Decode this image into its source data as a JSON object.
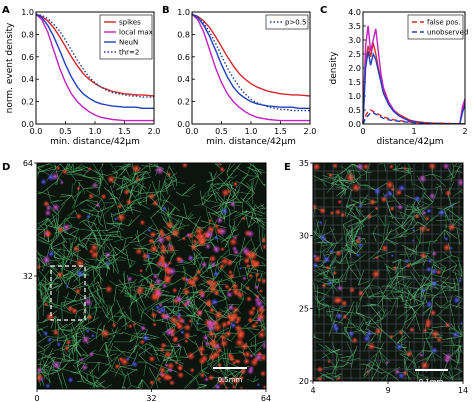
{
  "panels": {
    "A": {
      "letter": "A",
      "xlabel": "min. distance/42μm",
      "ylabel": "norm. event density",
      "xticks": [
        "0.0",
        "0.5",
        "1.0",
        "1.5",
        "2.0"
      ],
      "yticks": [
        "0.0",
        "0.2",
        "0.4",
        "0.6",
        "0.8",
        "1.0"
      ],
      "legend": [
        "spikes",
        "local max.",
        "NeuN",
        "thr=2"
      ]
    },
    "B": {
      "letter": "B",
      "xlabel": "min. distance/42μm",
      "xticks": [
        "0.0",
        "0.5",
        "1.0",
        "1.5",
        "2.0"
      ],
      "yticks": [
        "0.0",
        "0.2",
        "0.4",
        "0.6",
        "0.8",
        "1.0"
      ],
      "legend": [
        "p>0.5"
      ]
    },
    "C": {
      "letter": "C",
      "xlabel": "distance/42μm",
      "ylabel": "density",
      "xticks": [
        "0",
        "1",
        "2"
      ],
      "yticks": [
        "0.0",
        "0.5",
        "1.0",
        "1.5",
        "2.0",
        "2.5",
        "3.0",
        "3.5",
        "4.0"
      ],
      "legend": [
        "false pos.",
        "unobserved"
      ]
    },
    "D": {
      "letter": "D",
      "xticks": [
        "0",
        "32",
        "64"
      ],
      "yticks": [
        "32",
        "64"
      ],
      "scalebar": "0.5mm"
    },
    "E": {
      "letter": "E",
      "xticks": [
        "4",
        "9",
        "14"
      ],
      "yticks": [
        "20",
        "25",
        "30",
        "35"
      ],
      "scalebar": "0.1mm"
    }
  },
  "chart_data": [
    {
      "type": "line",
      "panel": "A",
      "xlim": [
        0,
        2
      ],
      "ylim": [
        0,
        1
      ],
      "x": [
        0,
        0.1,
        0.2,
        0.3,
        0.4,
        0.5,
        0.6,
        0.7,
        0.8,
        0.9,
        1.0,
        1.1,
        1.2,
        1.3,
        1.4,
        1.5,
        1.6,
        1.7,
        1.8,
        1.9,
        2.0
      ],
      "series": [
        {
          "name": "spikes",
          "color": "#d62728",
          "style": "solid",
          "values": [
            0.98,
            0.96,
            0.92,
            0.86,
            0.78,
            0.69,
            0.6,
            0.52,
            0.45,
            0.4,
            0.36,
            0.33,
            0.31,
            0.29,
            0.28,
            0.27,
            0.265,
            0.26,
            0.26,
            0.255,
            0.25
          ]
        },
        {
          "name": "local max.",
          "color": "#c020c0",
          "style": "solid",
          "values": [
            0.98,
            0.93,
            0.82,
            0.66,
            0.5,
            0.37,
            0.27,
            0.2,
            0.15,
            0.11,
            0.08,
            0.06,
            0.05,
            0.04,
            0.035,
            0.03,
            0.03,
            0.03,
            0.03,
            0.03,
            0.03
          ]
        },
        {
          "name": "NeuN",
          "color": "#1f3fbf",
          "style": "solid",
          "values": [
            0.98,
            0.95,
            0.88,
            0.78,
            0.66,
            0.53,
            0.42,
            0.33,
            0.27,
            0.23,
            0.2,
            0.18,
            0.17,
            0.16,
            0.155,
            0.15,
            0.15,
            0.15,
            0.14,
            0.14,
            0.14
          ]
        },
        {
          "name": "thr=2",
          "color": "#1f3f8f",
          "style": "dotted",
          "values": [
            0.98,
            0.97,
            0.94,
            0.89,
            0.83,
            0.75,
            0.66,
            0.57,
            0.49,
            0.42,
            0.37,
            0.33,
            0.3,
            0.28,
            0.27,
            0.26,
            0.25,
            0.25,
            0.24,
            0.24,
            0.24
          ]
        }
      ]
    },
    {
      "type": "line",
      "panel": "B",
      "xlim": [
        0,
        2
      ],
      "ylim": [
        0,
        1
      ],
      "x": [
        0,
        0.1,
        0.2,
        0.3,
        0.4,
        0.5,
        0.6,
        0.7,
        0.8,
        0.9,
        1.0,
        1.1,
        1.2,
        1.3,
        1.4,
        1.5,
        1.6,
        1.7,
        1.8,
        1.9,
        2.0
      ],
      "series": [
        {
          "name": "spikes",
          "color": "#d62728",
          "style": "solid",
          "values": [
            0.98,
            0.96,
            0.92,
            0.86,
            0.78,
            0.69,
            0.6,
            0.52,
            0.45,
            0.4,
            0.36,
            0.33,
            0.31,
            0.29,
            0.28,
            0.27,
            0.265,
            0.26,
            0.26,
            0.255,
            0.25
          ]
        },
        {
          "name": "local max.",
          "color": "#c020c0",
          "style": "solid",
          "values": [
            0.98,
            0.93,
            0.82,
            0.66,
            0.5,
            0.37,
            0.27,
            0.2,
            0.15,
            0.11,
            0.08,
            0.06,
            0.05,
            0.04,
            0.035,
            0.03,
            0.03,
            0.03,
            0.03,
            0.03,
            0.03
          ]
        },
        {
          "name": "NeuN",
          "color": "#1f3fbf",
          "style": "solid",
          "values": [
            0.98,
            0.95,
            0.88,
            0.78,
            0.66,
            0.53,
            0.42,
            0.33,
            0.27,
            0.23,
            0.2,
            0.18,
            0.17,
            0.16,
            0.155,
            0.15,
            0.15,
            0.15,
            0.14,
            0.14,
            0.14
          ]
        },
        {
          "name": "p>0.5",
          "color": "#1f3f8f",
          "style": "dotted",
          "values": [
            0.98,
            0.96,
            0.9,
            0.82,
            0.72,
            0.61,
            0.5,
            0.41,
            0.33,
            0.27,
            0.22,
            0.19,
            0.17,
            0.15,
            0.14,
            0.13,
            0.13,
            0.12,
            0.12,
            0.12,
            0.12
          ]
        }
      ]
    },
    {
      "type": "line",
      "panel": "C",
      "xlim": [
        0,
        2
      ],
      "ylim": [
        0,
        4
      ],
      "x": [
        0,
        0.05,
        0.1,
        0.15,
        0.2,
        0.25,
        0.3,
        0.35,
        0.4,
        0.5,
        0.6,
        0.7,
        0.8,
        0.9,
        1.0,
        1.2,
        1.4,
        1.6,
        1.8,
        1.9,
        1.95,
        2.0
      ],
      "series": [
        {
          "name": "spikes",
          "color": "#d62728",
          "style": "solid",
          "values": [
            0.0,
            2.2,
            2.8,
            2.4,
            2.9,
            2.5,
            2.0,
            1.6,
            1.2,
            0.8,
            0.5,
            0.35,
            0.25,
            0.15,
            0.1,
            0.05,
            0.03,
            0.02,
            0.01,
            0.01,
            0.5,
            0.8
          ]
        },
        {
          "name": "local max.",
          "color": "#c020c0",
          "style": "solid",
          "values": [
            0.0,
            2.8,
            3.5,
            2.6,
            3.0,
            3.4,
            2.6,
            1.8,
            1.3,
            0.8,
            0.5,
            0.3,
            0.2,
            0.12,
            0.08,
            0.04,
            0.02,
            0.01,
            0.01,
            0.01,
            0.6,
            0.9
          ]
        },
        {
          "name": "NeuN",
          "color": "#1f3fbf",
          "style": "solid",
          "values": [
            0.0,
            2.0,
            2.6,
            2.1,
            2.5,
            2.3,
            1.9,
            1.5,
            1.1,
            0.7,
            0.45,
            0.3,
            0.2,
            0.12,
            0.08,
            0.04,
            0.02,
            0.01,
            0.01,
            0.01,
            0.4,
            0.7
          ]
        },
        {
          "name": "false pos.",
          "color": "#d62728",
          "style": "dashed",
          "values": [
            0.0,
            0.3,
            0.45,
            0.5,
            0.45,
            0.4,
            0.35,
            0.3,
            0.25,
            0.2,
            0.15,
            0.12,
            0.1,
            0.08,
            0.06,
            0.04,
            0.03,
            0.02,
            0.01,
            0.01,
            0.01,
            0.0
          ]
        },
        {
          "name": "unobserved",
          "color": "#1f3fbf",
          "style": "dashed",
          "values": [
            0.0,
            0.2,
            0.3,
            0.4,
            0.4,
            0.35,
            0.3,
            0.25,
            0.2,
            0.15,
            0.12,
            0.1,
            0.08,
            0.06,
            0.05,
            0.03,
            0.02,
            0.01,
            0.01,
            0.01,
            0.01,
            0.0
          ]
        }
      ]
    }
  ]
}
